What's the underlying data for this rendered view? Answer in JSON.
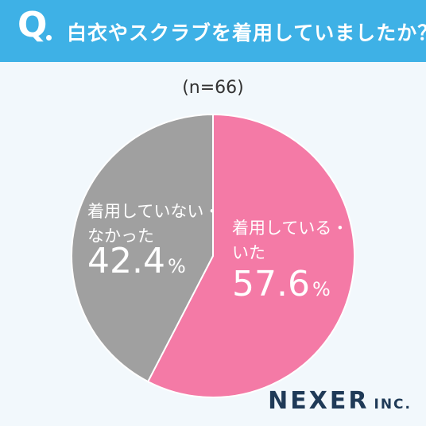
{
  "header": {
    "q_mark": "Q",
    "question": "白衣やスクラブを着用していましたか？"
  },
  "sample_size": "(n=66)",
  "chart_data": {
    "type": "pie",
    "slices": [
      {
        "label_lines": [
          "着用している・",
          "いた"
        ],
        "value": 57.6,
        "value_text": "57.6",
        "unit": "%",
        "color": "#f47aa6"
      },
      {
        "label_lines": [
          "着用していない・",
          "なかった"
        ],
        "value": 42.4,
        "value_text": "42.4",
        "unit": "%",
        "color": "#a0a0a0"
      }
    ],
    "start_angle_deg": 0,
    "direction": "clockwise"
  },
  "logo": {
    "main": "NEXER",
    "sub": "INC."
  }
}
